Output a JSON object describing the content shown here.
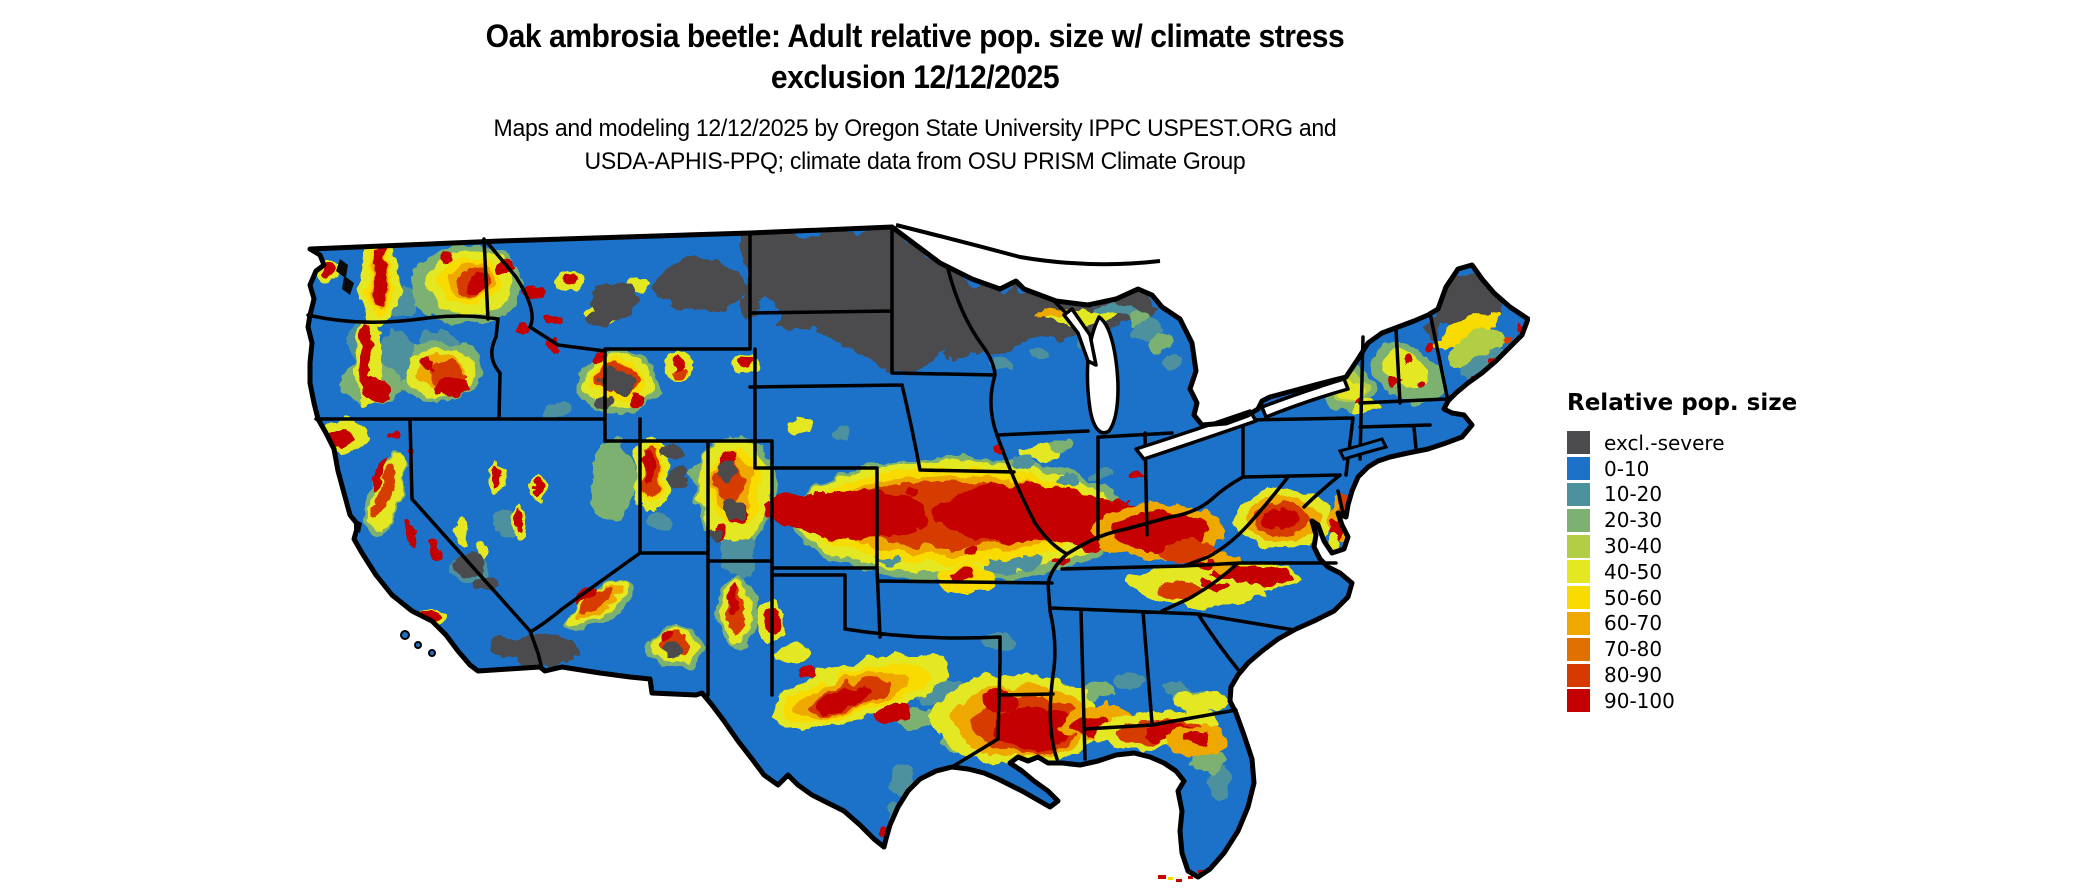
{
  "figure": {
    "title_line1": "Oak ambrosia beetle: Adult relative pop. size w/ climate stress",
    "title_line2": "exclusion 12/12/2025",
    "subtitle_line1": "Maps and modeling 12/12/2025 by Oregon State University IPPC USPEST.ORG and",
    "subtitle_line2": "USDA-APHIS-PPQ; climate data from OSU PRISM Climate Group"
  },
  "legend": {
    "title": "Relative pop. size",
    "items": [
      {
        "label": "excl.-severe",
        "color": "#4B4B4D"
      },
      {
        "label": "0-10",
        "color": "#1B72C8"
      },
      {
        "label": "10-20",
        "color": "#4D919E"
      },
      {
        "label": "20-30",
        "color": "#7DB171"
      },
      {
        "label": "30-40",
        "color": "#B2CE44"
      },
      {
        "label": "40-50",
        "color": "#E3E821"
      },
      {
        "label": "50-60",
        "color": "#F8DB00"
      },
      {
        "label": "60-70",
        "color": "#EFA800"
      },
      {
        "label": "70-80",
        "color": "#E07000"
      },
      {
        "label": "80-90",
        "color": "#D63A00"
      },
      {
        "label": "90-100",
        "color": "#C40000"
      }
    ]
  },
  "map": {
    "region": "Contiguous United States",
    "base_value_class": "0-10",
    "base_color": "#1B72C8",
    "excluded_color": "#4B4B4D",
    "water_color": "#FFFFFF",
    "border_color": "#000000",
    "hot_areas": [
      "Cascades",
      "Northern Rockies",
      "Sierra Nevada",
      "Wasatch",
      "Colorado Rockies",
      "Kansas-Missouri-Ohio Valley band",
      "Kentucky-Tennessee",
      "Virginia-Appalachians",
      "Central Texas",
      "Louisiana-Gulf Coast",
      "Florida Panhandle",
      "New England mountains"
    ],
    "excluded_areas": [
      "North Dakota",
      "Northern Minnesota",
      "Northern Wisconsin",
      "Michigan Upper Peninsula",
      "Northern Maine",
      "Yellowstone",
      "High Rockies",
      "Sonoran Desert"
    ]
  }
}
